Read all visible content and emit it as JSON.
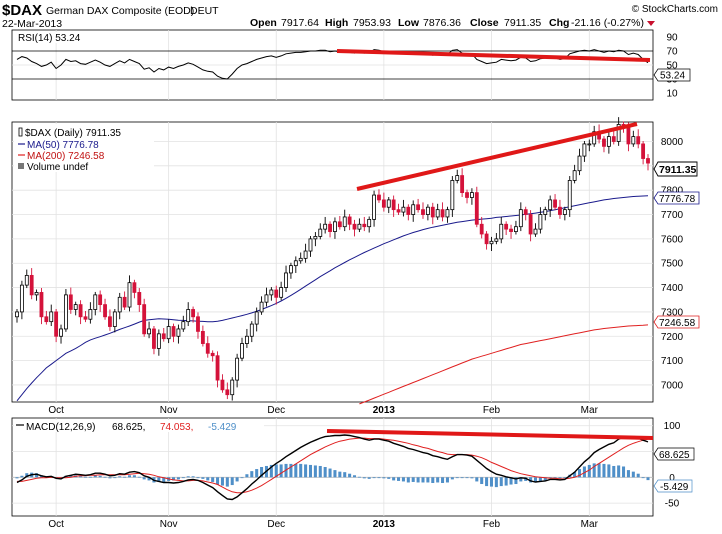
{
  "header": {
    "symbol": "$DAX",
    "name": "German DAX Composite (EOD)",
    "exchange": "DEUT",
    "date": "22-Mar-2013",
    "open_label": "Open",
    "open": "7917.64",
    "high_label": "High",
    "high": "7953.93",
    "low_label": "Low",
    "low": "7876.36",
    "close_label": "Close",
    "close": "7911.35",
    "chg_label": "Chg",
    "chg": "-21.16 (-0.27%)",
    "watermark": "© StockCharts.com"
  },
  "colors": {
    "up": "#000000",
    "down": "#d4123a",
    "ma50": "#1a1a8c",
    "ma200": "#e02020",
    "annotation": "#e01818",
    "macd_line": "#000000",
    "signal_line": "#e02020",
    "histogram": "#4f8fc8",
    "grid": "#e2e2e2"
  },
  "rsi_panel": {
    "legend": "RSI(14) 53.24",
    "last_value_label": "53.24",
    "tick_labels": [
      "90",
      "70",
      "50",
      "30",
      "10"
    ]
  },
  "price_panel": {
    "legend_title": "$DAX (Daily) 7911.35",
    "legend_ma50": "MA(50) 7776.78",
    "legend_ma200": "MA(200) 7246.58",
    "legend_volume": "Volume undef",
    "last_close_label": "7911.35",
    "ma50_label": "7776.78",
    "ma200_label": "7246.58",
    "tick_labels": [
      "8000",
      "7900",
      "7800",
      "7700",
      "7600",
      "7500",
      "7400",
      "7300",
      "7200",
      "7100",
      "7000"
    ],
    "month_labels": [
      "Oct",
      "Nov",
      "Dec",
      "2013",
      "Feb",
      "Mar"
    ]
  },
  "macd_panel": {
    "legend_prefix": "MACD(12,26,9)",
    "macd_value": "68.625,",
    "signal_value": "74.053,",
    "hist_value": "-5.429",
    "macd_label": "68.625",
    "hist_label": "-5.429",
    "tick_labels": [
      "100",
      "50",
      "0",
      "-50"
    ],
    "month_labels": [
      "Oct",
      "Nov",
      "Dec",
      "2013",
      "Feb",
      "Mar"
    ]
  },
  "chart_data": {
    "type": "candlestick",
    "period": "daily",
    "months": [
      "Oct",
      "Nov",
      "Dec",
      "2013",
      "Feb",
      "Mar"
    ],
    "price_ylim": [
      6930,
      8080
    ],
    "rsi_ylim": [
      0,
      100
    ],
    "macd_ylim": [
      -75,
      115
    ],
    "closes": [
      7300,
      7410,
      7450,
      7370,
      7380,
      7280,
      7260,
      7300,
      7200,
      7230,
      7370,
      7310,
      7330,
      7280,
      7270,
      7310,
      7370,
      7330,
      7280,
      7240,
      7300,
      7360,
      7320,
      7420,
      7380,
      7330,
      7210,
      7230,
      7150,
      7210,
      7190,
      7240,
      7200,
      7230,
      7260,
      7310,
      7280,
      7220,
      7170,
      7130,
      7120,
      7020,
      6980,
      6960,
      7020,
      7110,
      7170,
      7200,
      7250,
      7300,
      7340,
      7370,
      7390,
      7360,
      7400,
      7460,
      7490,
      7510,
      7520,
      7550,
      7600,
      7610,
      7640,
      7660,
      7630,
      7670,
      7650,
      7690,
      7660,
      7640,
      7660,
      7650,
      7680,
      7780,
      7760,
      7730,
      7760,
      7720,
      7710,
      7730,
      7700,
      7740,
      7720,
      7700,
      7730,
      7690,
      7720,
      7690,
      7720,
      7840,
      7860,
      7790,
      7770,
      7790,
      7660,
      7620,
      7580,
      7590,
      7600,
      7660,
      7640,
      7630,
      7650,
      7720,
      7700,
      7620,
      7640,
      7700,
      7720,
      7760,
      7730,
      7700,
      7720,
      7840,
      7880,
      7940,
      7990,
      7990,
      8040,
      8010,
      7980,
      8020,
      8000,
      8070,
      8060,
      7990,
      8020,
      7990,
      7930,
      7911.35
    ],
    "ma50": [
      6935,
      6960,
      6985,
      7008,
      7030,
      7050,
      7070,
      7085,
      7100,
      7115,
      7130,
      7140,
      7150,
      7162,
      7175,
      7185,
      7192,
      7198,
      7205,
      7212,
      7220,
      7228,
      7235,
      7242,
      7250,
      7258,
      7265,
      7268,
      7270,
      7272,
      7271,
      7270,
      7268,
      7266,
      7265,
      7264,
      7263,
      7262,
      7261,
      7260,
      7260,
      7262,
      7265,
      7270,
      7275,
      7280,
      7285,
      7290,
      7296,
      7303,
      7310,
      7318,
      7326,
      7335,
      7345,
      7356,
      7368,
      7380,
      7393,
      7406,
      7419,
      7432,
      7445,
      7457,
      7469,
      7481,
      7492,
      7503,
      7514,
      7524,
      7534,
      7544,
      7553,
      7562,
      7571,
      7580,
      7588,
      7596,
      7604,
      7612,
      7619,
      7626,
      7632,
      7638,
      7643,
      7648,
      7652,
      7656,
      7660,
      7664,
      7668,
      7671,
      7674,
      7677,
      7679,
      7681,
      7683,
      7685,
      7688,
      7690,
      7692,
      7694,
      7696,
      7698,
      7701,
      7703,
      7706,
      7709,
      7712,
      7716,
      7720,
      7724,
      7728,
      7732,
      7736,
      7740,
      7744,
      7748,
      7752,
      7756,
      7760,
      7763,
      7766,
      7768,
      7770,
      7772,
      7774,
      7775,
      7776,
      7776.78
    ],
    "ma200": [
      null,
      null,
      null,
      null,
      null,
      null,
      null,
      null,
      null,
      null,
      null,
      null,
      null,
      null,
      null,
      null,
      null,
      null,
      null,
      null,
      null,
      null,
      null,
      null,
      null,
      null,
      null,
      null,
      null,
      null,
      null,
      null,
      null,
      null,
      null,
      null,
      null,
      null,
      null,
      null,
      null,
      null,
      null,
      null,
      null,
      null,
      null,
      null,
      null,
      null,
      null,
      null,
      null,
      null,
      null,
      null,
      null,
      null,
      null,
      null,
      null,
      null,
      null,
      null,
      null,
      null,
      null,
      null,
      null,
      null,
      6922,
      6930,
      6938,
      6946,
      6954,
      6962,
      6970,
      6978,
      6986,
      6994,
      7002,
      7010,
      7018,
      7026,
      7034,
      7042,
      7050,
      7058,
      7066,
      7074,
      7082,
      7090,
      7098,
      7106,
      7112,
      7118,
      7124,
      7130,
      7136,
      7142,
      7148,
      7154,
      7160,
      7166,
      7170,
      7174,
      7178,
      7182,
      7186,
      7190,
      7194,
      7198,
      7202,
      7206,
      7210,
      7214,
      7218,
      7222,
      7226,
      7229,
      7232,
      7234,
      7236,
      7238,
      7240,
      7242,
      7243,
      7244,
      7245,
      7246.58
    ],
    "rsi": [
      58,
      62,
      60,
      55,
      52,
      48,
      50,
      54,
      45,
      50,
      58,
      55,
      56,
      52,
      51,
      54,
      57,
      54,
      50,
      48,
      52,
      56,
      53,
      58,
      55,
      52,
      44,
      46,
      40,
      45,
      43,
      47,
      45,
      48,
      50,
      53,
      51,
      47,
      43,
      41,
      40,
      34,
      31,
      30,
      37,
      45,
      50,
      52,
      55,
      58,
      60,
      62,
      63,
      61,
      63,
      66,
      67,
      68,
      68,
      69,
      70,
      70,
      71,
      71,
      69,
      70,
      69,
      70,
      68,
      67,
      68,
      67,
      68,
      72,
      71,
      69,
      70,
      67,
      66,
      67,
      65,
      67,
      66,
      65,
      66,
      64,
      66,
      64,
      65,
      71,
      72,
      67,
      65,
      66,
      58,
      55,
      52,
      53,
      54,
      58,
      57,
      56,
      57,
      61,
      60,
      55,
      56,
      59,
      60,
      62,
      60,
      58,
      59,
      66,
      68,
      70,
      71,
      70,
      72,
      70,
      68,
      70,
      69,
      71,
      70,
      65,
      67,
      65,
      58,
      53.24
    ],
    "macd": [
      -10,
      -5,
      2,
      5,
      6,
      3,
      1,
      2,
      -2,
      -3,
      2,
      4,
      6,
      5,
      4,
      5,
      8,
      8,
      6,
      3,
      4,
      7,
      6,
      10,
      11,
      9,
      3,
      0,
      -6,
      -8,
      -10,
      -10,
      -11,
      -10,
      -8,
      -5,
      -4,
      -6,
      -10,
      -15,
      -20,
      -28,
      -35,
      -42,
      -43,
      -38,
      -30,
      -22,
      -13,
      -5,
      4,
      12,
      20,
      27,
      33,
      40,
      46,
      52,
      58,
      63,
      68,
      72,
      76,
      79,
      80,
      81,
      81,
      82,
      81,
      79,
      77,
      74,
      72,
      74,
      74,
      72,
      70,
      66,
      63,
      60,
      56,
      54,
      51,
      48,
      46,
      42,
      40,
      37,
      35,
      40,
      44,
      44,
      43,
      41,
      33,
      25,
      17,
      11,
      6,
      4,
      1,
      -1,
      -3,
      -1,
      -2,
      -7,
      -9,
      -8,
      -7,
      -4,
      -4,
      -5,
      -4,
      3,
      10,
      20,
      30,
      38,
      48,
      54,
      59,
      64,
      67,
      74,
      78,
      76,
      77,
      76,
      72,
      68.625
    ],
    "signal": [
      -8,
      -8,
      -6,
      -4,
      -2,
      -1,
      -1,
      0,
      -1,
      -1,
      -1,
      0,
      2,
      3,
      3,
      4,
      4,
      5,
      5,
      5,
      5,
      5,
      5,
      6,
      7,
      8,
      7,
      6,
      4,
      1,
      -1,
      -3,
      -5,
      -6,
      -7,
      -7,
      -6,
      -6,
      -7,
      -9,
      -11,
      -14,
      -19,
      -24,
      -28,
      -30,
      -30,
      -28,
      -25,
      -21,
      -16,
      -10,
      -4,
      2,
      8,
      14,
      20,
      26,
      32,
      38,
      44,
      49,
      54,
      59,
      63,
      67,
      70,
      72,
      74,
      75,
      76,
      76,
      75,
      75,
      75,
      74,
      73,
      72,
      70,
      68,
      66,
      63,
      61,
      58,
      56,
      53,
      50,
      48,
      45,
      44,
      44,
      44,
      44,
      43,
      41,
      38,
      34,
      29,
      25,
      21,
      17,
      13,
      10,
      7,
      5,
      3,
      1,
      0,
      -1,
      -2,
      -2,
      -3,
      -3,
      -2,
      0,
      4,
      9,
      14,
      21,
      27,
      33,
      39,
      45,
      51,
      57,
      62,
      66,
      69,
      72,
      74.053
    ]
  }
}
